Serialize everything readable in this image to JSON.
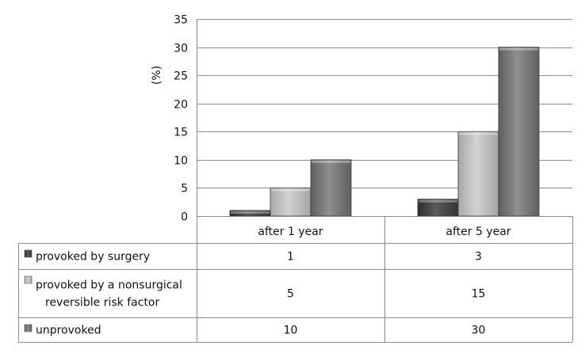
{
  "chart_data": {
    "type": "bar",
    "title": "",
    "xlabel": "",
    "ylabel": "(%)",
    "ylim": [
      0,
      35
    ],
    "yticks": [
      0,
      5,
      10,
      15,
      20,
      25,
      30,
      35
    ],
    "grid": true,
    "legend": "data table below chart",
    "categories": [
      "after 1 year",
      "after 5 year"
    ],
    "series": [
      {
        "name": "provoked by surgery",
        "name_lines": [
          "provoked by surgery"
        ],
        "values": [
          1,
          3
        ],
        "color": "#4a4a4a"
      },
      {
        "name": "provoked by a nonsurgical reversible risk factor",
        "name_lines": [
          "provoked by a nonsurgical",
          "reversible risk factor"
        ],
        "values": [
          5,
          15
        ],
        "color": "#bdbdbd"
      },
      {
        "name": "unprovoked",
        "name_lines": [
          "unprovoked"
        ],
        "values": [
          10,
          30
        ],
        "color": "#7a7a7a"
      }
    ]
  }
}
